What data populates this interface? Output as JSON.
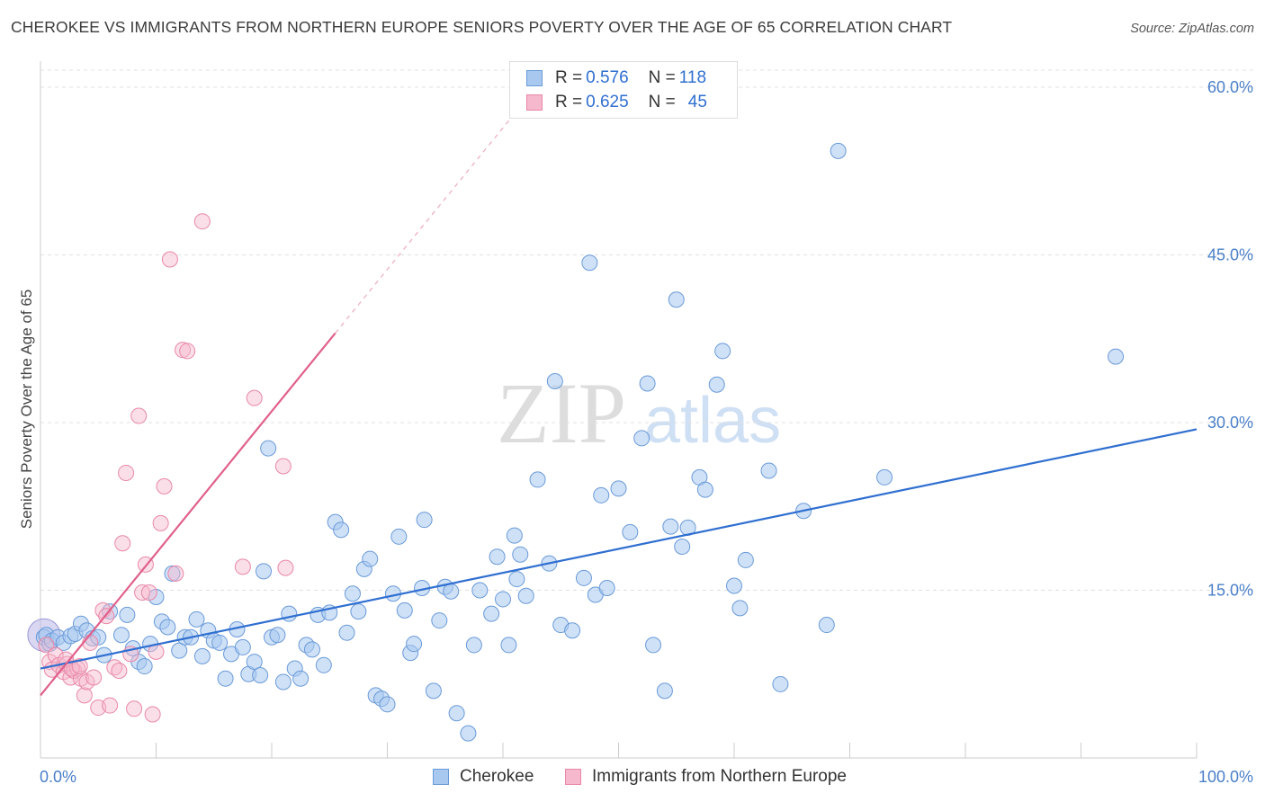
{
  "title": "CHEROKEE VS IMMIGRANTS FROM NORTHERN EUROPE SENIORS POVERTY OVER THE AGE OF 65 CORRELATION CHART",
  "source": "Source: ZipAtlas.com",
  "watermark": {
    "zip": "ZIP",
    "atlas": "atlas"
  },
  "legend": {
    "rows": [
      {
        "r_label": "R = ",
        "r_value": "0.576",
        "n_label": "N = ",
        "n_value": "118"
      },
      {
        "r_label": "R = ",
        "r_value": "0.625",
        "n_label": "N = ",
        "n_value": "45"
      }
    ]
  },
  "colors": {
    "cherokee_fill": "#a8c8f0",
    "cherokee_stroke": "#6a9ad8",
    "cherokee_line": "#2f6fd0",
    "immig_fill": "#f6b8cc",
    "immig_stroke": "#e888a8",
    "immig_line": "#e0608a",
    "grid": "#e0e0e0",
    "tick_text": "#4a7fc8"
  },
  "chart_data": {
    "type": "scatter",
    "title": "CHEROKEE VS IMMIGRANTS FROM NORTHERN EUROPE SENIORS POVERTY OVER THE AGE OF 65 CORRELATION CHART",
    "xlabel": "",
    "ylabel": "Seniors Poverty Over the Age of 65",
    "xlim": [
      0,
      100
    ],
    "ylim": [
      0,
      60
    ],
    "x_tick_labels": [
      "0.0%",
      "100.0%"
    ],
    "y_ticks": [
      15,
      30,
      45,
      60
    ],
    "y_tick_labels": [
      "15.0%",
      "30.0%",
      "45.0%",
      "60.0%"
    ],
    "grid": true,
    "legend_position": "top-center",
    "series": [
      {
        "name": "Cherokee",
        "r": 0.576,
        "n": 118,
        "trend": {
          "x": [
            0,
            100
          ],
          "y": [
            8.0,
            29.4
          ]
        },
        "points": [
          [
            0.3,
            10.8
          ],
          [
            0.5,
            11.0
          ],
          [
            0.8,
            10.2
          ],
          [
            1.0,
            10.5
          ],
          [
            1.5,
            10.8
          ],
          [
            2.0,
            10.3
          ],
          [
            2.6,
            10.9
          ],
          [
            3.0,
            11.1
          ],
          [
            3.5,
            12.0
          ],
          [
            4.0,
            11.4
          ],
          [
            4.5,
            10.7
          ],
          [
            5.0,
            10.8
          ],
          [
            5.5,
            9.2
          ],
          [
            6.0,
            13.1
          ],
          [
            7.0,
            11.0
          ],
          [
            7.5,
            12.8
          ],
          [
            8.0,
            9.8
          ],
          [
            8.5,
            8.6
          ],
          [
            9.0,
            8.2
          ],
          [
            9.5,
            10.2
          ],
          [
            10.0,
            14.4
          ],
          [
            10.5,
            12.2
          ],
          [
            11.0,
            11.7
          ],
          [
            11.4,
            16.5
          ],
          [
            12.0,
            9.6
          ],
          [
            12.5,
            10.8
          ],
          [
            13.0,
            10.8
          ],
          [
            13.5,
            12.4
          ],
          [
            14.0,
            9.1
          ],
          [
            14.5,
            11.4
          ],
          [
            15.0,
            10.5
          ],
          [
            15.5,
            10.3
          ],
          [
            16.0,
            7.1
          ],
          [
            16.5,
            9.3
          ],
          [
            17.0,
            11.5
          ],
          [
            17.5,
            9.9
          ],
          [
            18.0,
            7.5
          ],
          [
            18.5,
            8.6
          ],
          [
            19.0,
            7.4
          ],
          [
            19.3,
            16.7
          ],
          [
            19.7,
            27.7
          ],
          [
            20.0,
            10.8
          ],
          [
            20.5,
            11.0
          ],
          [
            21.0,
            6.8
          ],
          [
            21.5,
            12.9
          ],
          [
            22.0,
            8.0
          ],
          [
            22.5,
            7.1
          ],
          [
            23.0,
            10.1
          ],
          [
            23.5,
            9.7
          ],
          [
            24.0,
            12.8
          ],
          [
            24.5,
            8.3
          ],
          [
            25.0,
            13.0
          ],
          [
            25.5,
            21.1
          ],
          [
            26.0,
            20.4
          ],
          [
            26.5,
            11.2
          ],
          [
            27.0,
            14.7
          ],
          [
            27.5,
            13.1
          ],
          [
            28.0,
            16.9
          ],
          [
            28.5,
            17.8
          ],
          [
            29.0,
            5.6
          ],
          [
            29.5,
            5.3
          ],
          [
            30.0,
            4.8
          ],
          [
            30.5,
            14.7
          ],
          [
            31.0,
            19.8
          ],
          [
            31.5,
            13.2
          ],
          [
            32.0,
            9.4
          ],
          [
            32.3,
            10.2
          ],
          [
            33.0,
            15.2
          ],
          [
            33.2,
            21.3
          ],
          [
            34.0,
            6.0
          ],
          [
            34.5,
            12.3
          ],
          [
            35.0,
            15.3
          ],
          [
            35.5,
            14.9
          ],
          [
            36.0,
            4.0
          ],
          [
            37.0,
            2.2
          ],
          [
            37.5,
            10.1
          ],
          [
            38.0,
            15.0
          ],
          [
            39.0,
            12.9
          ],
          [
            39.5,
            18.0
          ],
          [
            40.0,
            14.2
          ],
          [
            40.5,
            10.1
          ],
          [
            41.0,
            19.9
          ],
          [
            41.2,
            16.0
          ],
          [
            41.5,
            18.2
          ],
          [
            42.0,
            14.5
          ],
          [
            43.0,
            24.9
          ],
          [
            44.0,
            17.4
          ],
          [
            44.5,
            33.7
          ],
          [
            45.0,
            11.9
          ],
          [
            46.0,
            11.4
          ],
          [
            47.0,
            16.1
          ],
          [
            47.5,
            44.3
          ],
          [
            48.0,
            14.6
          ],
          [
            48.5,
            23.5
          ],
          [
            49.0,
            15.2
          ],
          [
            50.0,
            24.1
          ],
          [
            51.0,
            20.2
          ],
          [
            52.0,
            28.6
          ],
          [
            52.5,
            33.5
          ],
          [
            53.0,
            10.1
          ],
          [
            54.0,
            6.0
          ],
          [
            54.5,
            20.7
          ],
          [
            55.0,
            41.0
          ],
          [
            55.5,
            18.9
          ],
          [
            56.0,
            20.6
          ],
          [
            57.0,
            25.1
          ],
          [
            57.5,
            24.0
          ],
          [
            58.5,
            33.4
          ],
          [
            59.0,
            36.4
          ],
          [
            60.0,
            15.4
          ],
          [
            60.5,
            13.4
          ],
          [
            61.0,
            17.7
          ],
          [
            63.0,
            25.7
          ],
          [
            64.0,
            6.6
          ],
          [
            66.0,
            22.1
          ],
          [
            68.0,
            11.9
          ],
          [
            69.0,
            54.3
          ],
          [
            73.0,
            25.1
          ],
          [
            93.0,
            35.9
          ]
        ]
      },
      {
        "name": "Immigrants from Northern Europe",
        "r": 0.625,
        "n": 45,
        "trend": {
          "x": [
            0,
            25.5
          ],
          "y": [
            5.6,
            38.0
          ]
        },
        "trend_dashed": {
          "x": [
            25.5,
            40.5
          ],
          "y": [
            38.0,
            57.0
          ]
        },
        "points": [
          [
            0.5,
            10.1
          ],
          [
            0.8,
            8.6
          ],
          [
            1.0,
            7.9
          ],
          [
            1.3,
            9.2
          ],
          [
            1.6,
            8.3
          ],
          [
            2.0,
            7.7
          ],
          [
            2.3,
            8.4
          ],
          [
            2.6,
            7.2
          ],
          [
            2.9,
            7.8
          ],
          [
            3.2,
            8.0
          ],
          [
            3.5,
            7.1
          ],
          [
            3.8,
            5.6
          ],
          [
            4.0,
            6.8
          ],
          [
            4.3,
            10.3
          ],
          [
            4.6,
            7.2
          ],
          [
            5.0,
            4.5
          ],
          [
            5.4,
            13.2
          ],
          [
            5.7,
            12.7
          ],
          [
            6.0,
            4.7
          ],
          [
            6.4,
            8.1
          ],
          [
            6.8,
            7.8
          ],
          [
            7.1,
            19.2
          ],
          [
            7.4,
            25.5
          ],
          [
            7.8,
            9.3
          ],
          [
            8.1,
            4.4
          ],
          [
            8.5,
            30.6
          ],
          [
            8.8,
            14.8
          ],
          [
            9.1,
            17.3
          ],
          [
            9.4,
            14.8
          ],
          [
            9.7,
            3.9
          ],
          [
            10.0,
            9.5
          ],
          [
            10.4,
            21.0
          ],
          [
            10.7,
            24.3
          ],
          [
            11.2,
            44.6
          ],
          [
            11.7,
            16.5
          ],
          [
            12.3,
            36.5
          ],
          [
            12.7,
            36.4
          ],
          [
            14.0,
            48.0
          ],
          [
            17.5,
            17.1
          ],
          [
            18.5,
            32.2
          ],
          [
            21.0,
            26.1
          ],
          [
            21.2,
            17.0
          ],
          [
            2.2,
            8.8
          ],
          [
            2.7,
            8.0
          ],
          [
            3.4,
            8.2
          ]
        ]
      }
    ]
  },
  "bottom_legend": [
    {
      "label": "Cherokee"
    },
    {
      "label": "Immigrants from Northern Europe"
    }
  ]
}
